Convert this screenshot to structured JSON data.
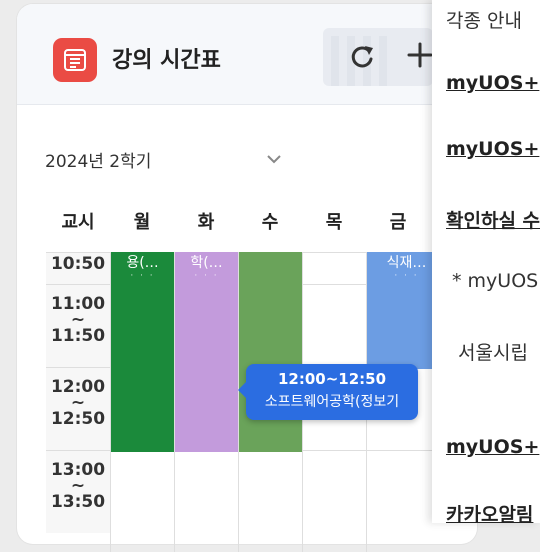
{
  "card": {
    "title": "강의 시간표",
    "semester": "2024년 2학기"
  },
  "table": {
    "headers": [
      "교시",
      "월",
      "화",
      "수",
      "목",
      "금"
    ],
    "periods": [
      {
        "start": "10:50",
        "sep": "",
        "end": ""
      },
      {
        "start": "11:00",
        "sep": "~",
        "end": "11:50"
      },
      {
        "start": "12:00",
        "sep": "~",
        "end": "12:50"
      },
      {
        "start": "13:00",
        "sep": "~",
        "end": "13:50"
      }
    ],
    "blocks": [
      {
        "label": "용(…",
        "dots": "· · ·",
        "color": "#1b8a3b"
      },
      {
        "label": "학(…",
        "dots": "· · ·",
        "color": "#c39bdc"
      },
      {
        "label": "",
        "dots": "",
        "color": "#6aa35a"
      },
      {
        "label": "식재…",
        "dots": "· · ·",
        "color": "#6c9de3"
      }
    ]
  },
  "tooltip": {
    "time": "12:00~12:50",
    "course": "소프트웨어공학(정보기"
  },
  "side_panel": {
    "rows": [
      {
        "text": "각종 안내",
        "style": "plain"
      },
      {
        "text": "myUOS+",
        "style": "link"
      },
      {
        "text": "myUOS+",
        "style": "link"
      },
      {
        "text": "확인하실 수",
        "style": "link"
      },
      {
        "text": "* myUOS",
        "style": "plain"
      },
      {
        "text": "서울시립",
        "style": "plain"
      },
      {
        "text": "myUOS+",
        "style": "link"
      },
      {
        "text": "카카오알림",
        "style": "link"
      }
    ]
  },
  "colors": {
    "accent": "#ea4b44",
    "tooltip": "#2b6de1"
  },
  "icons": {
    "app": "schedule-icon",
    "refresh": "refresh-icon",
    "add": "plus-icon",
    "dropdown": "chevron-down-icon"
  }
}
